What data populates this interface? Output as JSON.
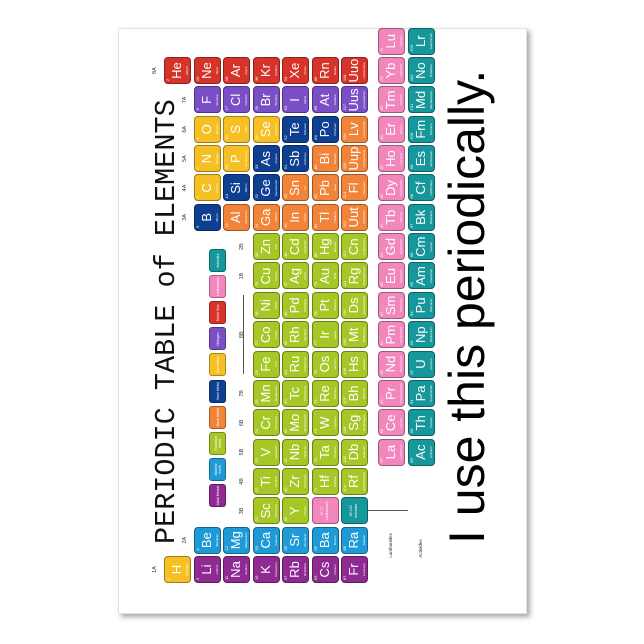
{
  "title": "PERIODIC TABLE of ELEMENTS",
  "slogan": "I use this periodically.",
  "categories": {
    "am": {
      "label": "Alkali Metals",
      "color": "#8e2a91"
    },
    "ae": {
      "label": "Alkaline Earth",
      "color": "#1e9ad6"
    },
    "tm": {
      "label": "Transition Metal",
      "color": "#a6c827"
    },
    "bm": {
      "label": "Basic Metal",
      "color": "#f2843a"
    },
    "sm": {
      "label": "Semi Metal",
      "color": "#0e3f91"
    },
    "nm": {
      "label": "Non Metal",
      "color": "#f6c024"
    },
    "ha": {
      "label": "Halogen",
      "color": "#7a4fc6"
    },
    "ng": {
      "label": "Noble Gas",
      "color": "#d6342a"
    },
    "la": {
      "label": "Lanthanides",
      "color": "#f287bd"
    },
    "ac": {
      "label": "Actinides",
      "color": "#15979b"
    }
  },
  "legend_order": [
    "am",
    "ae",
    "tm",
    "bm",
    "sm",
    "nm",
    "ha",
    "ng",
    "la",
    "ac"
  ],
  "group_labels": [
    "1A",
    "2A",
    "3B",
    "4B",
    "5B",
    "6B",
    "7B",
    "8B",
    "1B",
    "2B",
    "3A",
    "4A",
    "5A",
    "6A",
    "7A",
    "8A"
  ],
  "placeholders": {
    "lanthanides": "57-71 Lanthanides",
    "actinides": "89-103 Actinides"
  },
  "row_labels": {
    "lanthanides": "Lanthanides",
    "actinides": "Actinides"
  },
  "elements": [
    [
      "H",
      "Hydrogen",
      "nm"
    ],
    [
      "He",
      "Helium",
      "ng"
    ],
    [
      "Li",
      "Lithium",
      "am"
    ],
    [
      "Be",
      "Beryllium",
      "ae"
    ],
    [
      "B",
      "Boron",
      "sm"
    ],
    [
      "C",
      "Carbon",
      "nm"
    ],
    [
      "N",
      "Nitrogen",
      "nm"
    ],
    [
      "O",
      "Oxygen",
      "nm"
    ],
    [
      "F",
      "Fluorine",
      "ha"
    ],
    [
      "Ne",
      "Neon",
      "ng"
    ],
    [
      "Na",
      "Sodium",
      "am"
    ],
    [
      "Mg",
      "Magnesium",
      "ae"
    ],
    [
      "Al",
      "Aluminum",
      "bm"
    ],
    [
      "Si",
      "Silicon",
      "sm"
    ],
    [
      "P",
      "Phosphorus",
      "nm"
    ],
    [
      "S",
      "Sulfur",
      "nm"
    ],
    [
      "Cl",
      "Chlorine",
      "ha"
    ],
    [
      "Ar",
      "Argon",
      "ng"
    ],
    [
      "K",
      "Potassium",
      "am"
    ],
    [
      "Ca",
      "Calcium",
      "ae"
    ],
    [
      "Sc",
      "Scandium",
      "tm"
    ],
    [
      "Ti",
      "Titanium",
      "tm"
    ],
    [
      "V",
      "Vanadium",
      "tm"
    ],
    [
      "Cr",
      "Chromium",
      "tm"
    ],
    [
      "Mn",
      "Manganese",
      "tm"
    ],
    [
      "Fe",
      "Iron",
      "tm"
    ],
    [
      "Co",
      "Cobalt",
      "tm"
    ],
    [
      "Ni",
      "Nickel",
      "tm"
    ],
    [
      "Cu",
      "Copper",
      "tm"
    ],
    [
      "Zn",
      "Zinc",
      "tm"
    ],
    [
      "Ga",
      "Gallium",
      "bm"
    ],
    [
      "Ge",
      "Germanium",
      "sm"
    ],
    [
      "As",
      "Arsenic",
      "sm"
    ],
    [
      "Se",
      "Selenium",
      "nm"
    ],
    [
      "Br",
      "Bromine",
      "ha"
    ],
    [
      "Kr",
      "Krypton",
      "ng"
    ],
    [
      "Rb",
      "Rubidium",
      "am"
    ],
    [
      "Sr",
      "Strontium",
      "ae"
    ],
    [
      "Y",
      "Yttrium",
      "tm"
    ],
    [
      "Zr",
      "Zirconium",
      "tm"
    ],
    [
      "Nb",
      "Niobium",
      "tm"
    ],
    [
      "Mo",
      "Molybdenum",
      "tm"
    ],
    [
      "Tc",
      "Technetium",
      "tm"
    ],
    [
      "Ru",
      "Ruthenium",
      "tm"
    ],
    [
      "Rh",
      "Rhodium",
      "tm"
    ],
    [
      "Pd",
      "Palladium",
      "tm"
    ],
    [
      "Ag",
      "Silver",
      "tm"
    ],
    [
      "Cd",
      "Cadmium",
      "tm"
    ],
    [
      "In",
      "Indium",
      "bm"
    ],
    [
      "Sn",
      "Tin",
      "bm"
    ],
    [
      "Sb",
      "Antimony",
      "sm"
    ],
    [
      "Te",
      "Tellurium",
      "sm"
    ],
    [
      "I",
      "Iodine",
      "ha"
    ],
    [
      "Xe",
      "Xenon",
      "ng"
    ],
    [
      "Cs",
      "Cesium",
      "am"
    ],
    [
      "Ba",
      "Barium",
      "ae"
    ],
    [
      "La",
      "Lanthanum",
      "la"
    ],
    [
      "Ce",
      "Cerium",
      "la"
    ],
    [
      "Pr",
      "Praseodymium",
      "la"
    ],
    [
      "Nd",
      "Neodymium",
      "la"
    ],
    [
      "Pm",
      "Promethium",
      "la"
    ],
    [
      "Sm",
      "Samarium",
      "la"
    ],
    [
      "Eu",
      "Europium",
      "la"
    ],
    [
      "Gd",
      "Gadolinium",
      "la"
    ],
    [
      "Tb",
      "Terbium",
      "la"
    ],
    [
      "Dy",
      "Dysprosium",
      "la"
    ],
    [
      "Ho",
      "Holmium",
      "la"
    ],
    [
      "Er",
      "Erbium",
      "la"
    ],
    [
      "Tm",
      "Thulium",
      "la"
    ],
    [
      "Yb",
      "Ytterbium",
      "la"
    ],
    [
      "Lu",
      "Lutetium",
      "la"
    ],
    [
      "Hf",
      "Hafnium",
      "tm"
    ],
    [
      "Ta",
      "Tantalum",
      "tm"
    ],
    [
      "W",
      "Tungsten",
      "tm"
    ],
    [
      "Re",
      "Rhenium",
      "tm"
    ],
    [
      "Os",
      "Osmium",
      "tm"
    ],
    [
      "Ir",
      "Iridium",
      "tm"
    ],
    [
      "Pt",
      "Platinum",
      "tm"
    ],
    [
      "Au",
      "Gold",
      "tm"
    ],
    [
      "Hg",
      "Mercury",
      "tm"
    ],
    [
      "Tl",
      "Thallium",
      "bm"
    ],
    [
      "Pb",
      "Lead",
      "bm"
    ],
    [
      "Bi",
      "Bismuth",
      "bm"
    ],
    [
      "Po",
      "Polonium",
      "sm"
    ],
    [
      "At",
      "Astatine",
      "ha"
    ],
    [
      "Rn",
      "Radon",
      "ng"
    ],
    [
      "Fr",
      "Francium",
      "am"
    ],
    [
      "Ra",
      "Radium",
      "ae"
    ],
    [
      "Ac",
      "Actinium",
      "ac"
    ],
    [
      "Th",
      "Thorium",
      "ac"
    ],
    [
      "Pa",
      "Protactinium",
      "ac"
    ],
    [
      "U",
      "Uranium",
      "ac"
    ],
    [
      "Np",
      "Neptunium",
      "ac"
    ],
    [
      "Pu",
      "Plutonium",
      "ac"
    ],
    [
      "Am",
      "Americium",
      "ac"
    ],
    [
      "Cm",
      "Curium",
      "ac"
    ],
    [
      "Bk",
      "Berkelium",
      "ac"
    ],
    [
      "Cf",
      "Californium",
      "ac"
    ],
    [
      "Es",
      "Einsteinium",
      "ac"
    ],
    [
      "Fm",
      "Fermium",
      "ac"
    ],
    [
      "Md",
      "Mendelevium",
      "ac"
    ],
    [
      "No",
      "Nobelium",
      "ac"
    ],
    [
      "Lr",
      "Lawrencium",
      "ac"
    ],
    [
      "Rf",
      "Rutherfordium",
      "tm"
    ],
    [
      "Db",
      "Dubnium",
      "tm"
    ],
    [
      "Sg",
      "Seaborgium",
      "tm"
    ],
    [
      "Bh",
      "Bohrium",
      "tm"
    ],
    [
      "Hs",
      "Hassium",
      "tm"
    ],
    [
      "Mt",
      "Meitnerium",
      "tm"
    ],
    [
      "Ds",
      "Darmstadtium",
      "tm"
    ],
    [
      "Rg",
      "Roentgenium",
      "tm"
    ],
    [
      "Cn",
      "Copernicium",
      "tm"
    ],
    [
      "Uut",
      "Ununtrium",
      "bm"
    ],
    [
      "Fl",
      "Flerovium",
      "bm"
    ],
    [
      "Uup",
      "Ununpentium",
      "bm"
    ],
    [
      "Lv",
      "Livermorium",
      "bm"
    ],
    [
      "Uus",
      "Ununseptium",
      "ha"
    ],
    [
      "Uuo",
      "Ununoctium",
      "ng"
    ]
  ]
}
